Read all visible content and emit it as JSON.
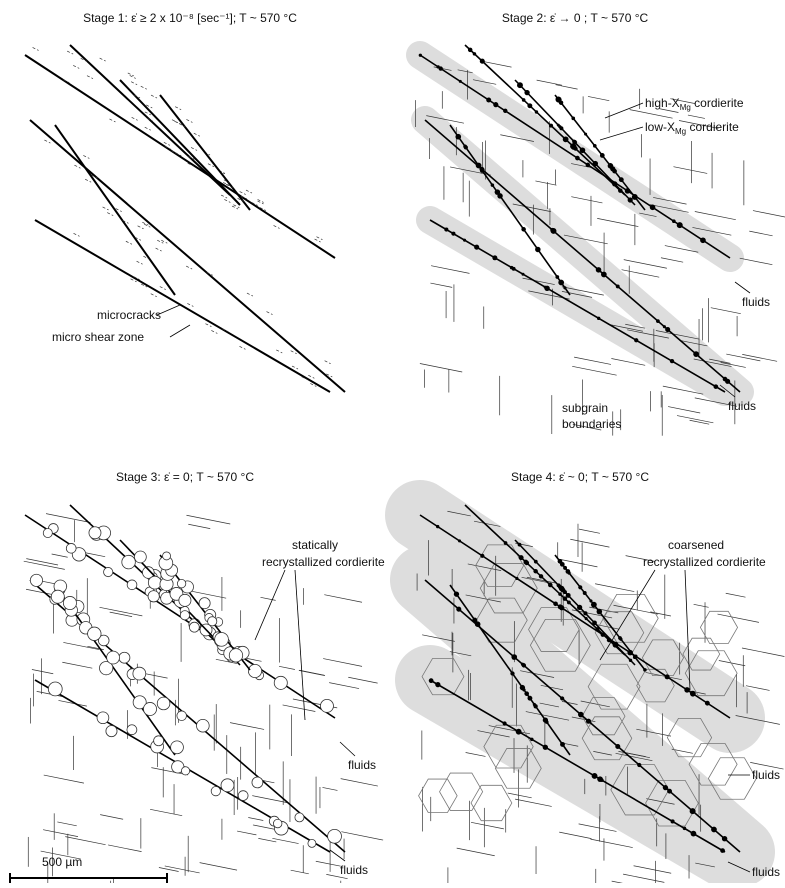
{
  "panels": [
    {
      "title": "Stage 1: ε̇ ≥ 2 x 10⁻⁸ [sec⁻¹]; T ~ 570 °C",
      "labels": [
        "microcracks",
        "micro shear zone"
      ]
    },
    {
      "title": "Stage 2: ε̇ → 0 ; T ~ 570 °C",
      "high": {
        "prefix": "high-X",
        "sub": "Mg",
        "suffix": " cordierite"
      },
      "low": {
        "prefix": "low-X",
        "sub": "Mg",
        "suffix": " cordierite"
      },
      "labels": [
        "fluids",
        "fluids"
      ],
      "subgrain": [
        "subgrain",
        "boundaries"
      ]
    },
    {
      "title": "Stage 3: ε̇ = 0; T ~ 570 °C",
      "note": [
        "statically",
        "recrystallized cordierite"
      ],
      "labels": [
        "fluids",
        "fluids"
      ]
    },
    {
      "title": "Stage 4: ε̇ ~ 0; T ~ 570 °C",
      "note": [
        "coarsened",
        "recrystallized cordierite"
      ],
      "labels": [
        "fluids",
        "fluids"
      ]
    }
  ],
  "scale_bar": "500 µm"
}
